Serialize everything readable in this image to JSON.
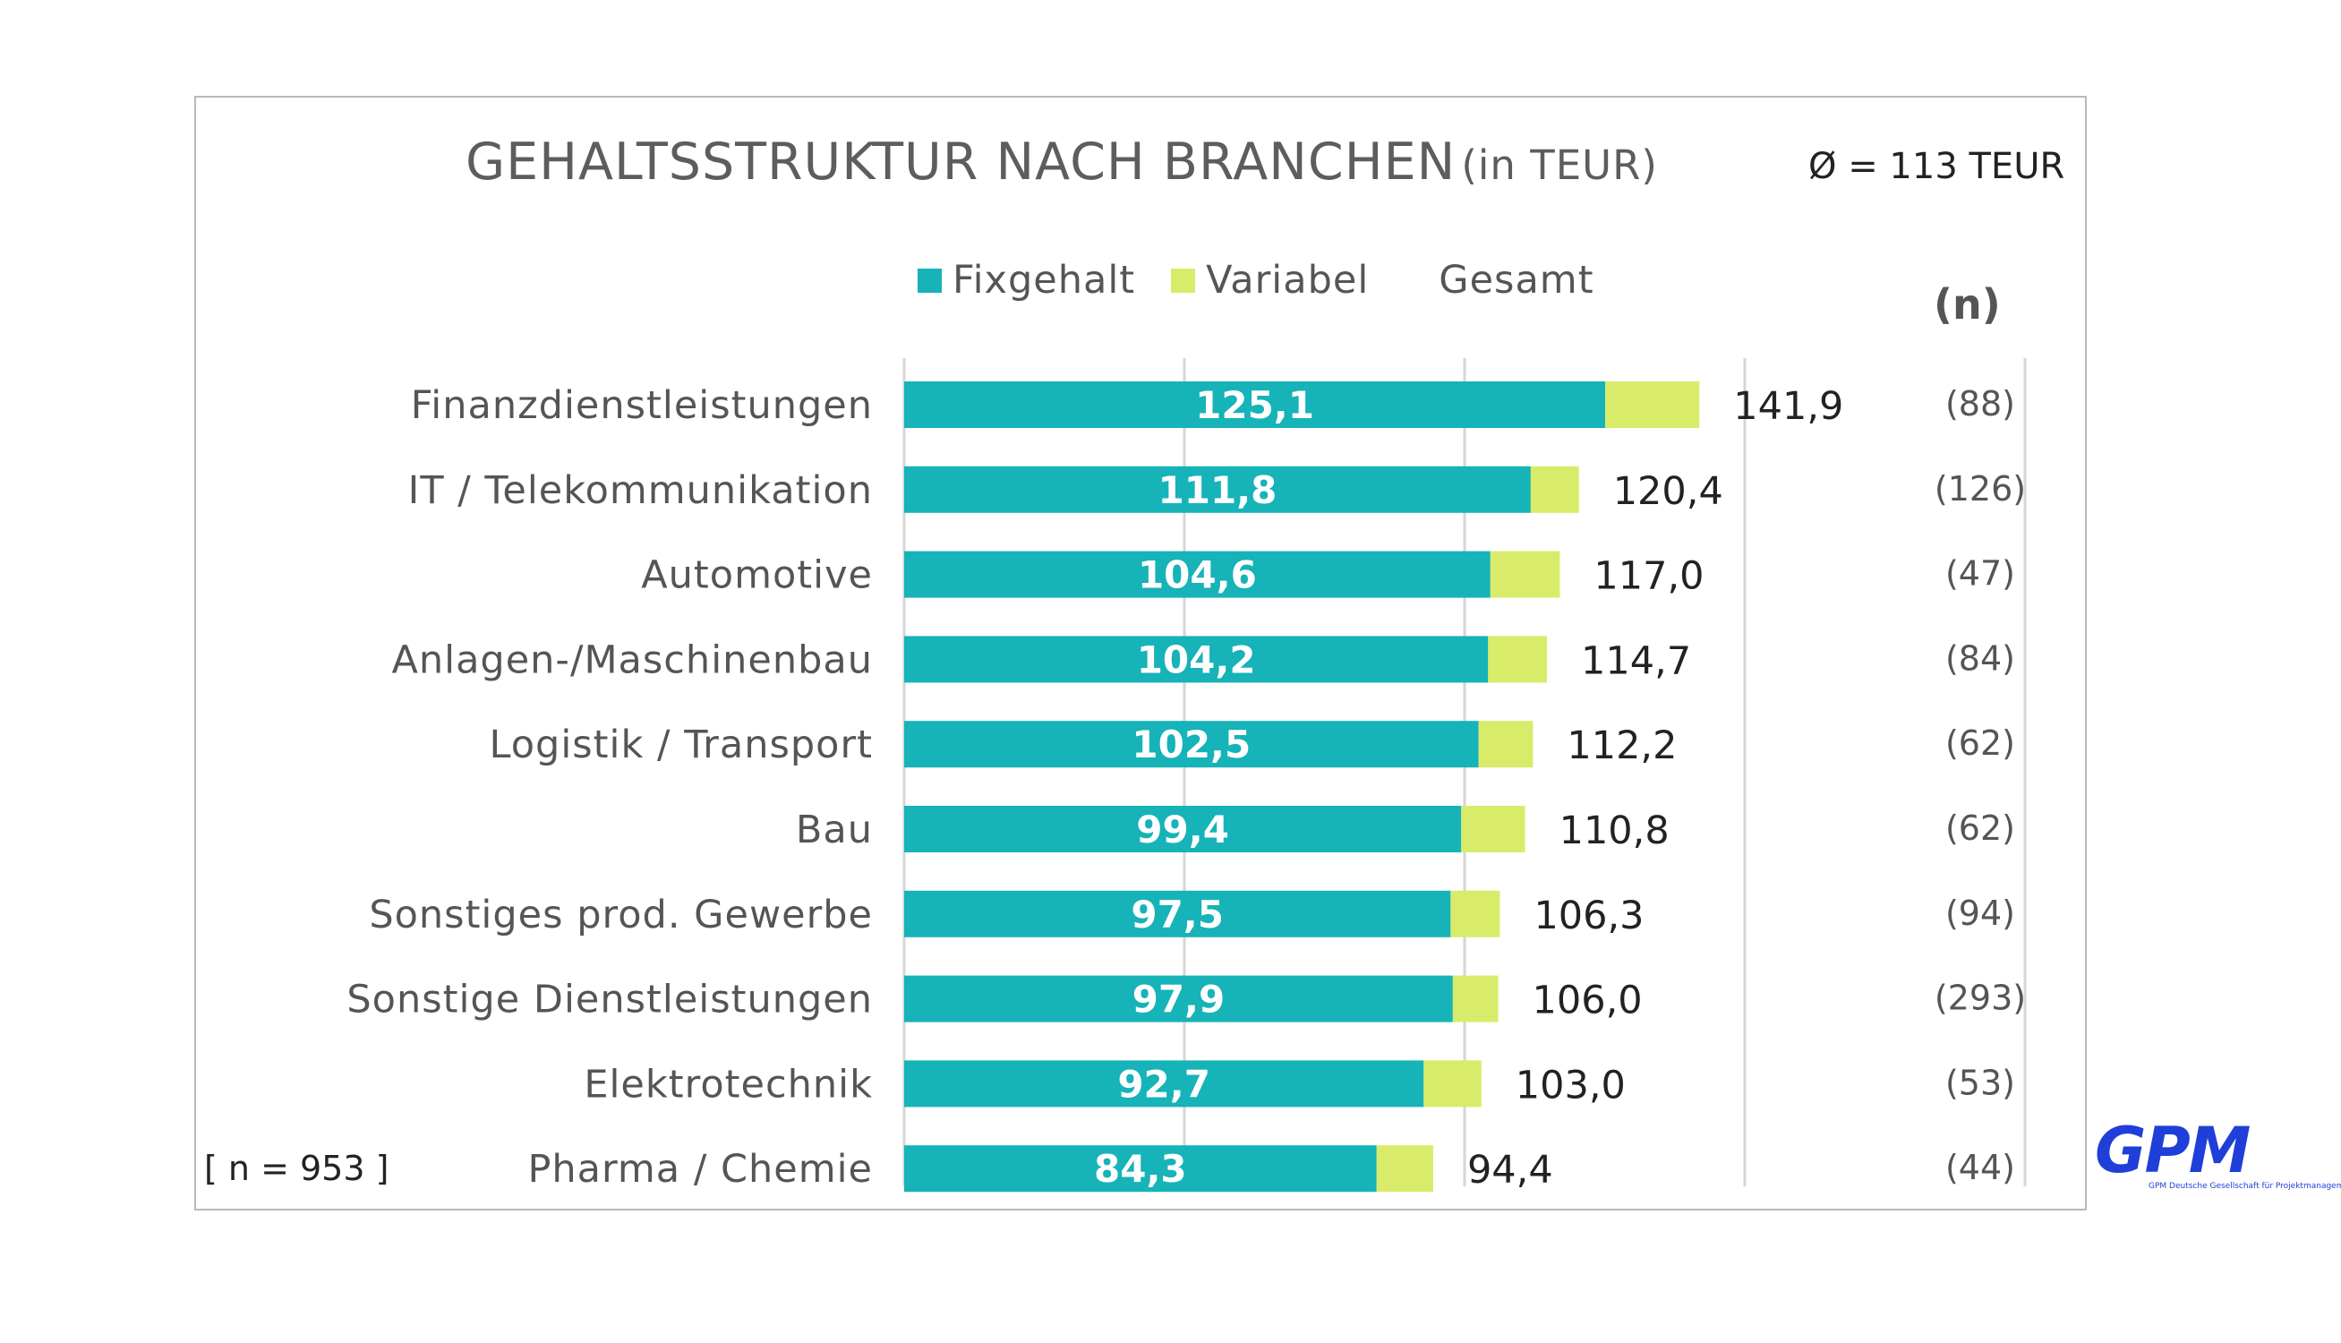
{
  "title": {
    "main": "GEHALTSSTRUKTUR NACH BRANCHEN",
    "sub": "(in TEUR)"
  },
  "average_label": "Ø = 113 TEUR",
  "legend": {
    "fix": "Fixgehalt",
    "var": "Variabel",
    "total": "Gesamt"
  },
  "n_header": "(n)",
  "n_total": "[ n = 953 ]",
  "logo": {
    "text": "GPM",
    "tagline": "GPM Deutsche Gesellschaft für Projektmanagement e. V."
  },
  "colors": {
    "fix": "#16b3b8",
    "var": "#d8ec6a",
    "grid": "#d6d6d6"
  },
  "chart_data": {
    "type": "bar",
    "orientation": "horizontal",
    "stacked": true,
    "categories": [
      "Finanzdienstleistungen",
      "IT / Telekommunikation",
      "Automotive",
      "Anlagen-/Maschinenbau",
      "Logistik / Transport",
      "Bau",
      "Sonstiges prod. Gewerbe",
      "Sonstige Dienstleistungen",
      "Elektrotechnik",
      "Pharma / Chemie"
    ],
    "series": [
      {
        "name": "Fixgehalt",
        "values": [
          125.1,
          111.8,
          104.6,
          104.2,
          102.5,
          99.4,
          97.5,
          97.9,
          92.7,
          84.3
        ],
        "labels": [
          "125,1",
          "111,8",
          "104,6",
          "104,2",
          "102,5",
          "99,4",
          "97,5",
          "97,9",
          "92,7",
          "84,3"
        ]
      },
      {
        "name": "Variabel",
        "values": [
          16.8,
          8.6,
          12.4,
          10.5,
          9.7,
          11.4,
          8.8,
          8.1,
          10.3,
          10.1
        ]
      }
    ],
    "totals": [
      141.9,
      120.4,
      117.0,
      114.7,
      112.2,
      110.8,
      106.3,
      106.0,
      103.0,
      94.4
    ],
    "total_labels": [
      "141,9",
      "120,4",
      "117,0",
      "114,7",
      "112,2",
      "110,8",
      "106,3",
      "106,0",
      "103,0",
      "94,4"
    ],
    "n_labels": [
      "(88)",
      "(126)",
      "(47)",
      "(84)",
      "(62)",
      "(62)",
      "(94)",
      "(293)",
      "(53)",
      "(44)"
    ],
    "xlim": [
      0,
      200
    ],
    "gridlines": [
      0,
      50,
      100,
      150,
      200
    ],
    "grid": true,
    "legend_position": "top"
  }
}
